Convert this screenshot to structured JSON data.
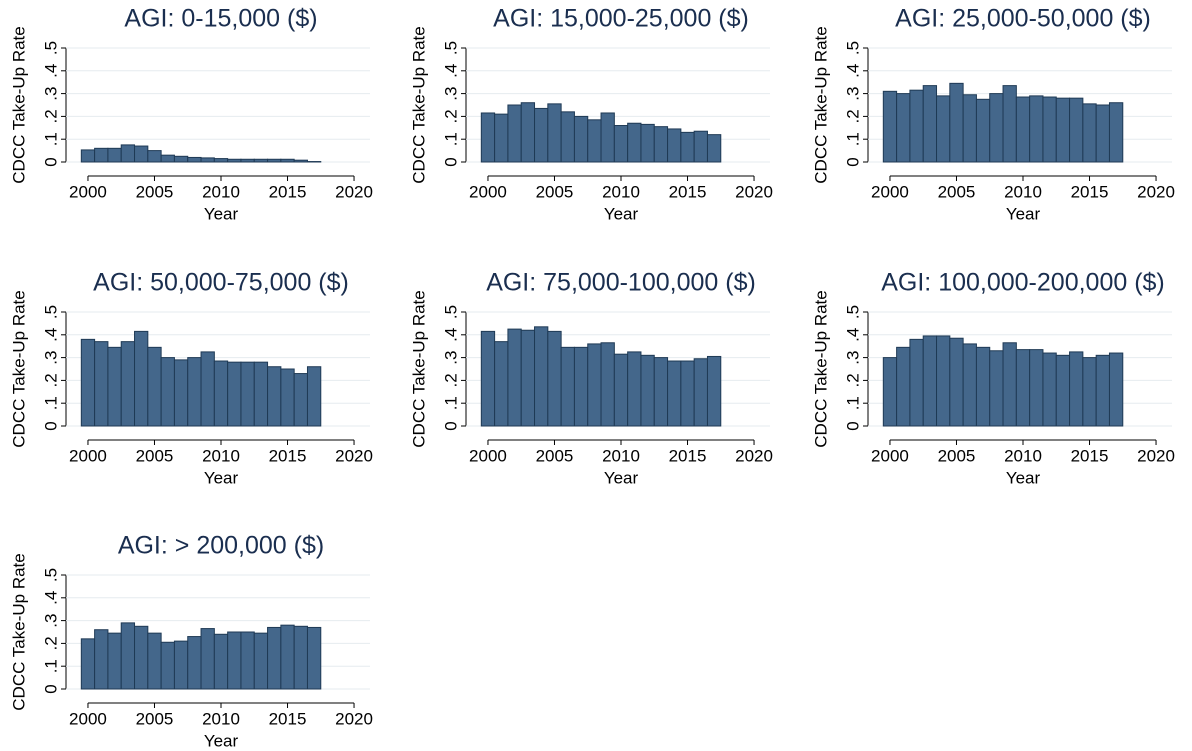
{
  "chart_data": [
    {
      "type": "bar",
      "title": "AGI: 0-15,000 ($)",
      "x_label": "Year",
      "y_label": "CDCC Take-Up Rate",
      "x": [
        2000,
        2001,
        2002,
        2003,
        2004,
        2005,
        2006,
        2007,
        2008,
        2009,
        2010,
        2011,
        2012,
        2013,
        2014,
        2015,
        2016,
        2017
      ],
      "values": [
        0.053,
        0.06,
        0.06,
        0.075,
        0.07,
        0.05,
        0.03,
        0.025,
        0.02,
        0.018,
        0.015,
        0.012,
        0.012,
        0.012,
        0.012,
        0.012,
        0.008,
        0.002
      ],
      "color": "#44678b",
      "xlim": [
        1998.8,
        2021.2
      ],
      "xticks": [
        2000,
        2005,
        2010,
        2015,
        2020
      ],
      "ylim": [
        0,
        0.5
      ],
      "yticks": [
        0,
        {
          "value": 0.1,
          "label": ".1"
        },
        {
          "value": 0.2,
          "label": ".2"
        },
        {
          "value": 0.3,
          "label": ".3"
        },
        {
          "value": 0.4,
          "label": ".4"
        },
        {
          "value": 0.5,
          "label": ".5"
        }
      ],
      "grid": true
    },
    {
      "type": "bar",
      "title": "AGI: 15,000-25,000 ($)",
      "x_label": "Year",
      "y_label": "CDCC Take-Up Rate",
      "x": [
        2000,
        2001,
        2002,
        2003,
        2004,
        2005,
        2006,
        2007,
        2008,
        2009,
        2010,
        2011,
        2012,
        2013,
        2014,
        2015,
        2016,
        2017
      ],
      "values": [
        0.215,
        0.21,
        0.25,
        0.26,
        0.235,
        0.255,
        0.22,
        0.2,
        0.185,
        0.215,
        0.16,
        0.17,
        0.165,
        0.155,
        0.145,
        0.13,
        0.135,
        0.12
      ],
      "color": "#44678b",
      "xlim": [
        1998.8,
        2021.2
      ],
      "xticks": [
        2000,
        2005,
        2010,
        2015,
        2020
      ],
      "ylim": [
        0,
        0.5
      ],
      "yticks": [
        0,
        {
          "value": 0.1,
          "label": ".1"
        },
        {
          "value": 0.2,
          "label": ".2"
        },
        {
          "value": 0.3,
          "label": ".3"
        },
        {
          "value": 0.4,
          "label": ".4"
        },
        {
          "value": 0.5,
          "label": ".5"
        }
      ],
      "grid": true
    },
    {
      "type": "bar",
      "title": "AGI: 25,000-50,000 ($)",
      "x_label": "Year",
      "y_label": "CDCC Take-Up Rate",
      "x": [
        2000,
        2001,
        2002,
        2003,
        2004,
        2005,
        2006,
        2007,
        2008,
        2009,
        2010,
        2011,
        2012,
        2013,
        2014,
        2015,
        2016,
        2017
      ],
      "values": [
        0.31,
        0.3,
        0.315,
        0.335,
        0.29,
        0.345,
        0.295,
        0.275,
        0.3,
        0.335,
        0.285,
        0.29,
        0.285,
        0.28,
        0.28,
        0.255,
        0.25,
        0.26
      ],
      "color": "#44678b",
      "xlim": [
        1998.8,
        2021.2
      ],
      "xticks": [
        2000,
        2005,
        2010,
        2015,
        2020
      ],
      "ylim": [
        0,
        0.5
      ],
      "yticks": [
        0,
        {
          "value": 0.1,
          "label": ".1"
        },
        {
          "value": 0.2,
          "label": ".2"
        },
        {
          "value": 0.3,
          "label": ".3"
        },
        {
          "value": 0.4,
          "label": ".4"
        },
        {
          "value": 0.5,
          "label": ".5"
        }
      ],
      "grid": true
    },
    {
      "type": "bar",
      "title": "AGI: 50,000-75,000 ($)",
      "x_label": "Year",
      "y_label": "CDCC Take-Up Rate",
      "x": [
        2000,
        2001,
        2002,
        2003,
        2004,
        2005,
        2006,
        2007,
        2008,
        2009,
        2010,
        2011,
        2012,
        2013,
        2014,
        2015,
        2016,
        2017
      ],
      "values": [
        0.38,
        0.37,
        0.345,
        0.37,
        0.415,
        0.345,
        0.3,
        0.29,
        0.3,
        0.325,
        0.285,
        0.28,
        0.28,
        0.28,
        0.26,
        0.25,
        0.23,
        0.26
      ],
      "color": "#44678b",
      "xlim": [
        1998.8,
        2021.2
      ],
      "xticks": [
        2000,
        2005,
        2010,
        2015,
        2020
      ],
      "ylim": [
        0,
        0.5
      ],
      "yticks": [
        0,
        {
          "value": 0.1,
          "label": ".1"
        },
        {
          "value": 0.2,
          "label": ".2"
        },
        {
          "value": 0.3,
          "label": ".3"
        },
        {
          "value": 0.4,
          "label": ".4"
        },
        {
          "value": 0.5,
          "label": ".5"
        }
      ],
      "grid": true
    },
    {
      "type": "bar",
      "title": "AGI: 75,000-100,000 ($)",
      "x_label": "Year",
      "y_label": "CDCC Take-Up Rate",
      "x": [
        2000,
        2001,
        2002,
        2003,
        2004,
        2005,
        2006,
        2007,
        2008,
        2009,
        2010,
        2011,
        2012,
        2013,
        2014,
        2015,
        2016,
        2017
      ],
      "values": [
        0.415,
        0.37,
        0.425,
        0.42,
        0.435,
        0.415,
        0.345,
        0.345,
        0.36,
        0.365,
        0.315,
        0.325,
        0.31,
        0.3,
        0.285,
        0.285,
        0.295,
        0.305
      ],
      "color": "#44678b",
      "xlim": [
        1998.8,
        2021.2
      ],
      "xticks": [
        2000,
        2005,
        2010,
        2015,
        2020
      ],
      "ylim": [
        0,
        0.5
      ],
      "yticks": [
        0,
        {
          "value": 0.1,
          "label": ".1"
        },
        {
          "value": 0.2,
          "label": ".2"
        },
        {
          "value": 0.3,
          "label": ".3"
        },
        {
          "value": 0.4,
          "label": ".4"
        },
        {
          "value": 0.5,
          "label": ".5"
        }
      ],
      "grid": true
    },
    {
      "type": "bar",
      "title": "AGI: 100,000-200,000 ($)",
      "x_label": "Year",
      "y_label": "CDCC Take-Up Rate",
      "x": [
        2000,
        2001,
        2002,
        2003,
        2004,
        2005,
        2006,
        2007,
        2008,
        2009,
        2010,
        2011,
        2012,
        2013,
        2014,
        2015,
        2016,
        2017
      ],
      "values": [
        0.3,
        0.345,
        0.38,
        0.395,
        0.395,
        0.385,
        0.36,
        0.345,
        0.33,
        0.365,
        0.335,
        0.335,
        0.32,
        0.31,
        0.325,
        0.3,
        0.31,
        0.32
      ],
      "color": "#44678b",
      "xlim": [
        1998.8,
        2021.2
      ],
      "xticks": [
        2000,
        2005,
        2010,
        2015,
        2020
      ],
      "ylim": [
        0,
        0.5
      ],
      "yticks": [
        0,
        {
          "value": 0.1,
          "label": ".1"
        },
        {
          "value": 0.2,
          "label": ".2"
        },
        {
          "value": 0.3,
          "label": ".3"
        },
        {
          "value": 0.4,
          "label": ".4"
        },
        {
          "value": 0.5,
          "label": ".5"
        }
      ],
      "grid": true
    },
    {
      "type": "bar",
      "title": "AGI: > 200,000 ($)",
      "x_label": "Year",
      "y_label": "CDCC Take-Up Rate",
      "x": [
        2000,
        2001,
        2002,
        2003,
        2004,
        2005,
        2006,
        2007,
        2008,
        2009,
        2010,
        2011,
        2012,
        2013,
        2014,
        2015,
        2016,
        2017
      ],
      "values": [
        0.22,
        0.26,
        0.245,
        0.29,
        0.275,
        0.245,
        0.205,
        0.21,
        0.23,
        0.265,
        0.24,
        0.25,
        0.25,
        0.245,
        0.27,
        0.28,
        0.275,
        0.27
      ],
      "color": "#44678b",
      "xlim": [
        1998.8,
        2021.2
      ],
      "xticks": [
        2000,
        2005,
        2010,
        2015,
        2020
      ],
      "ylim": [
        0,
        0.5
      ],
      "yticks": [
        0,
        {
          "value": 0.1,
          "label": ".1"
        },
        {
          "value": 0.2,
          "label": ".2"
        },
        {
          "value": 0.3,
          "label": ".3"
        },
        {
          "value": 0.4,
          "label": ".4"
        },
        {
          "value": 0.5,
          "label": ".5"
        }
      ],
      "grid": true
    }
  ]
}
